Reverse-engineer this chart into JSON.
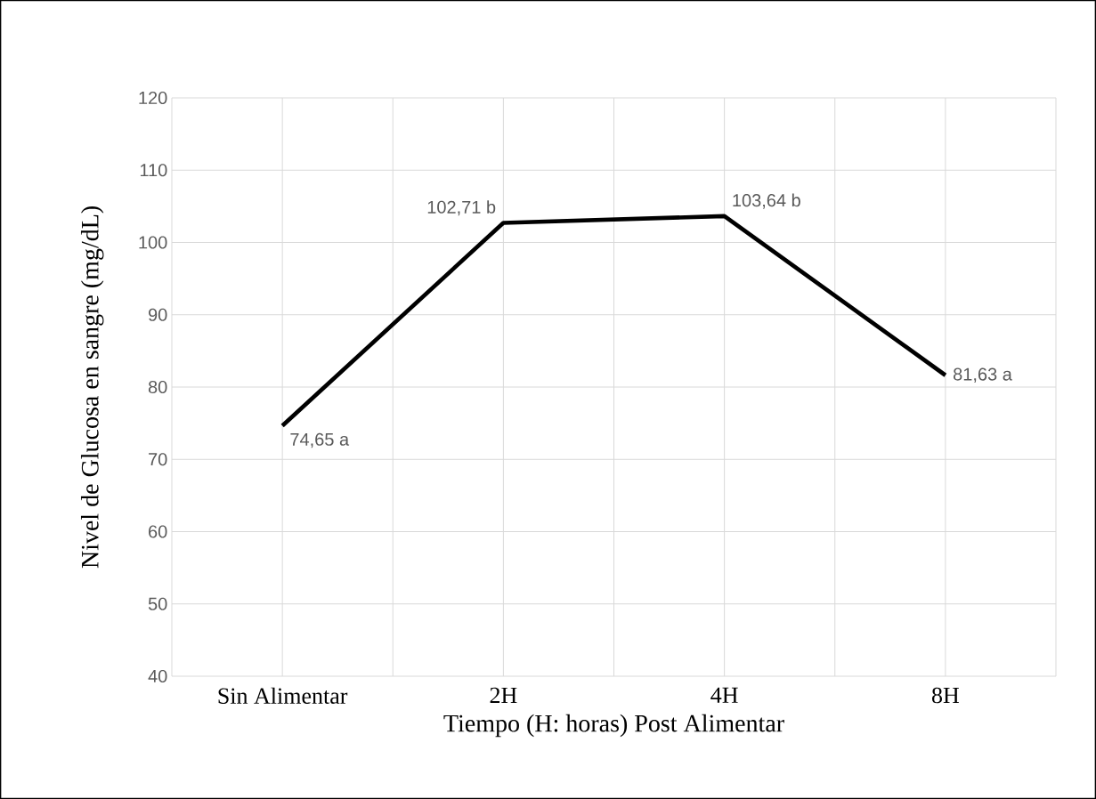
{
  "chart_data": {
    "type": "line",
    "xlabel": "Tiempo (H: horas) Post Alimentar",
    "ylabel": "Nivel de Glucosa en sangre (mg/dL)",
    "categories": [
      "Sin Alimentar",
      "2H",
      "4H",
      "8H"
    ],
    "values": [
      74.65,
      102.71,
      103.64,
      81.63
    ],
    "value_labels": [
      "74,65 a",
      "102,71 b",
      "103,64 b",
      "81,63 a"
    ],
    "color": "#000000",
    "ylim": [
      40,
      120
    ],
    "yticks": [
      40,
      50,
      60,
      70,
      80,
      90,
      100,
      110,
      120
    ],
    "grid": true,
    "marker": "none",
    "line_style": "solid"
  }
}
